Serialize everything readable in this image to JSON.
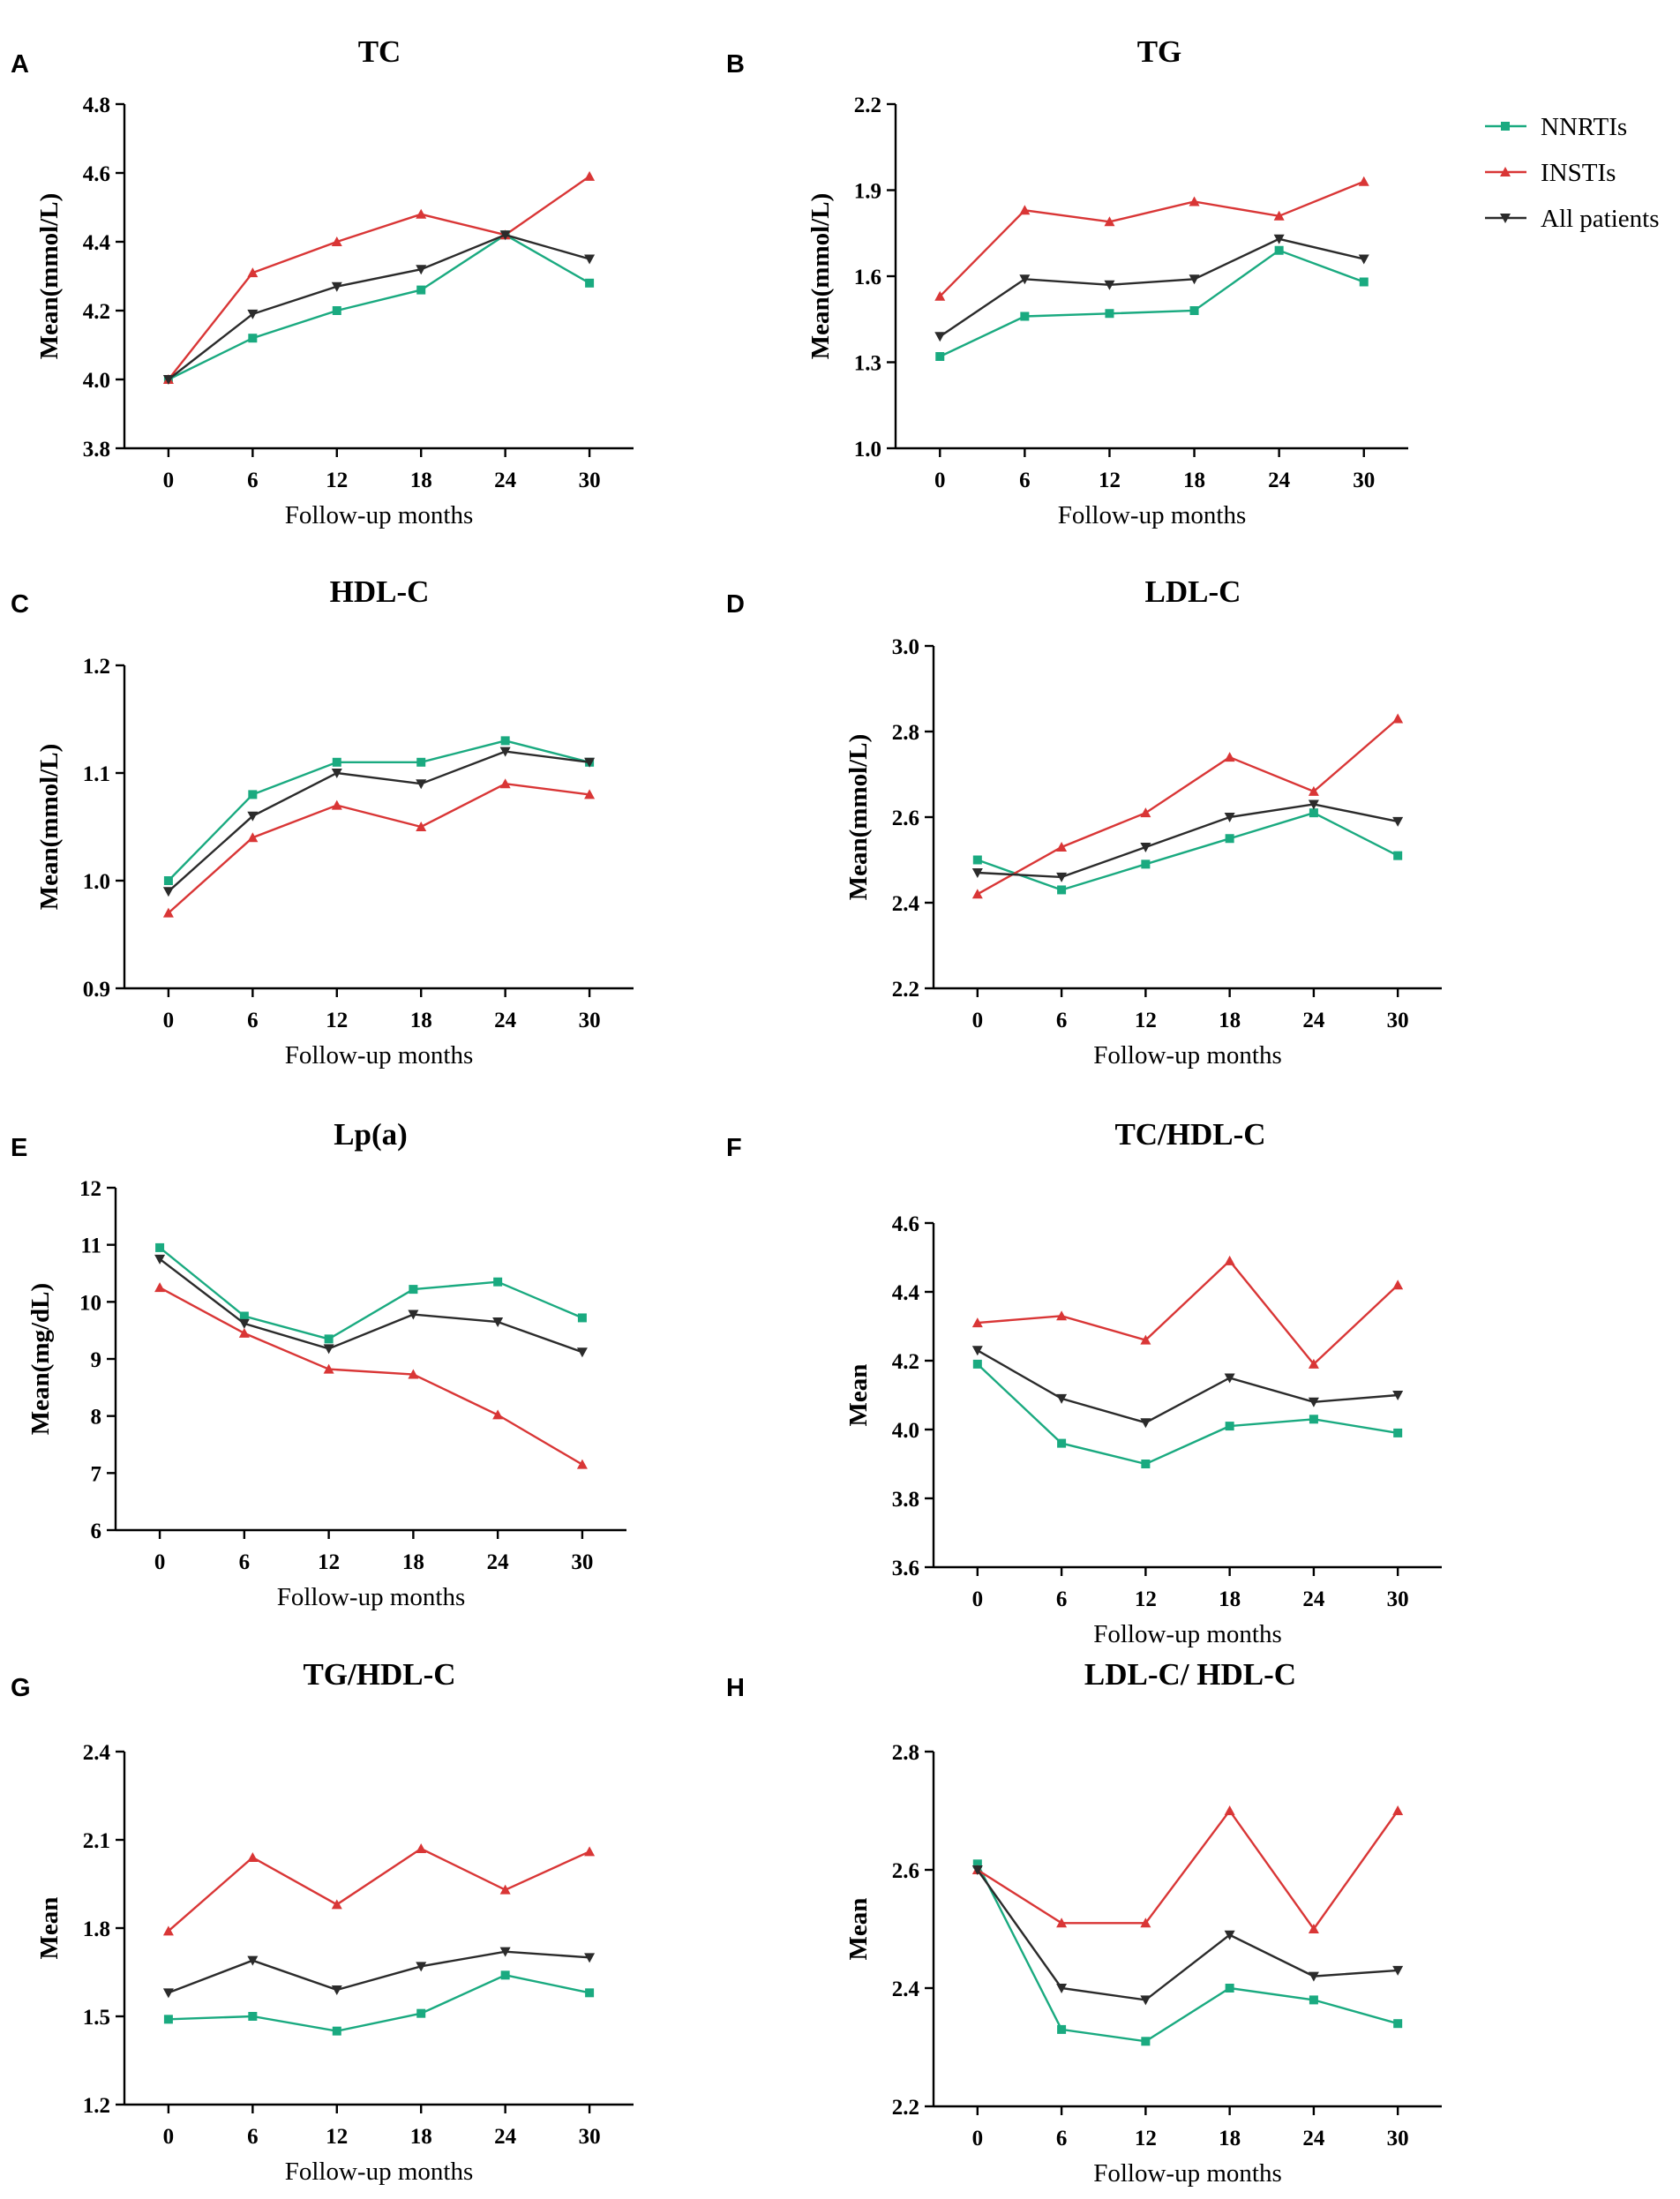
{
  "legend": {
    "items": [
      {
        "name": "NNRTIs",
        "color": "#1aaa80",
        "marker": "square"
      },
      {
        "name": "INSTIs",
        "color": "#d93636",
        "marker": "triangle-up"
      },
      {
        "name": "All patients",
        "color": "#2b2b2b",
        "marker": "triangle-down"
      }
    ]
  },
  "chart_data": [
    {
      "panel": "A",
      "type": "line",
      "title": "TC",
      "xlabel": "Follow-up months",
      "ylabel": "Mean(mmol/L)",
      "x": [
        0,
        6,
        12,
        18,
        24,
        30
      ],
      "ylim": [
        3.8,
        4.8
      ],
      "yticks": [
        "3.8",
        "4.0",
        "4.2",
        "4.4",
        "4.6",
        "4.8"
      ],
      "series": [
        {
          "name": "NNRTIs",
          "values": [
            4.0,
            4.12,
            4.2,
            4.26,
            4.42,
            4.28
          ]
        },
        {
          "name": "INSTIs",
          "values": [
            4.0,
            4.31,
            4.4,
            4.48,
            4.42,
            4.59
          ]
        },
        {
          "name": "All patients",
          "values": [
            4.0,
            4.19,
            4.27,
            4.32,
            4.42,
            4.35
          ]
        }
      ]
    },
    {
      "panel": "B",
      "type": "line",
      "title": "TG",
      "xlabel": "Follow-up months",
      "ylabel": "Mean(mmol/L)",
      "x": [
        0,
        6,
        12,
        18,
        24,
        30
      ],
      "ylim": [
        1.0,
        2.2
      ],
      "yticks": [
        "1.0",
        "1.3",
        "1.6",
        "1.9",
        "2.2"
      ],
      "series": [
        {
          "name": "NNRTIs",
          "values": [
            1.32,
            1.46,
            1.47,
            1.48,
            1.69,
            1.58
          ]
        },
        {
          "name": "INSTIs",
          "values": [
            1.53,
            1.83,
            1.79,
            1.86,
            1.81,
            1.93
          ]
        },
        {
          "name": "All patients",
          "values": [
            1.39,
            1.59,
            1.57,
            1.59,
            1.73,
            1.66
          ]
        }
      ]
    },
    {
      "panel": "C",
      "type": "line",
      "title": "HDL-C",
      "xlabel": "Follow-up months",
      "ylabel": "Mean(mmol/L)",
      "x": [
        0,
        6,
        12,
        18,
        24,
        30
      ],
      "ylim": [
        0.9,
        1.2
      ],
      "yticks": [
        "0.9",
        "1.0",
        "1.1",
        "1.2"
      ],
      "series": [
        {
          "name": "NNRTIs",
          "values": [
            1.0,
            1.08,
            1.11,
            1.11,
            1.13,
            1.11
          ]
        },
        {
          "name": "INSTIs",
          "values": [
            0.97,
            1.04,
            1.07,
            1.05,
            1.09,
            1.08
          ]
        },
        {
          "name": "All patients",
          "values": [
            0.99,
            1.06,
            1.1,
            1.09,
            1.12,
            1.11
          ]
        }
      ]
    },
    {
      "panel": "D",
      "type": "line",
      "title": "LDL-C",
      "xlabel": "Follow-up months",
      "ylabel": "Mean(mmol/L)",
      "x": [
        0,
        6,
        12,
        18,
        24,
        30
      ],
      "ylim": [
        2.2,
        3.0
      ],
      "yticks": [
        "2.2",
        "2.4",
        "2.6",
        "2.8",
        "3.0"
      ],
      "series": [
        {
          "name": "NNRTIs",
          "values": [
            2.5,
            2.43,
            2.49,
            2.55,
            2.61,
            2.51
          ]
        },
        {
          "name": "INSTIs",
          "values": [
            2.42,
            2.53,
            2.61,
            2.74,
            2.66,
            2.83
          ]
        },
        {
          "name": "All patients",
          "values": [
            2.47,
            2.46,
            2.53,
            2.6,
            2.63,
            2.59
          ]
        }
      ]
    },
    {
      "panel": "E",
      "type": "line",
      "title": "Lp(a)",
      "xlabel": "Follow-up months",
      "ylabel": "Mean(mg/dL)",
      "x": [
        0,
        6,
        12,
        18,
        24,
        30
      ],
      "ylim": [
        6,
        12
      ],
      "yticks": [
        "6",
        "7",
        "8",
        "9",
        "10",
        "11",
        "12"
      ],
      "series": [
        {
          "name": "NNRTIs",
          "values": [
            10.95,
            9.75,
            9.35,
            10.22,
            10.35,
            9.72
          ]
        },
        {
          "name": "INSTIs",
          "values": [
            10.25,
            9.45,
            8.82,
            8.73,
            8.02,
            7.15
          ]
        },
        {
          "name": "All patients",
          "values": [
            10.75,
            9.62,
            9.18,
            9.78,
            9.65,
            9.12
          ]
        }
      ]
    },
    {
      "panel": "F",
      "type": "line",
      "title": "TC/HDL-C",
      "xlabel": "Follow-up months",
      "ylabel": "Mean",
      "x": [
        0,
        6,
        12,
        18,
        24,
        30
      ],
      "ylim": [
        3.6,
        4.6
      ],
      "yticks": [
        "3.6",
        "3.8",
        "4.0",
        "4.2",
        "4.4",
        "4.6"
      ],
      "series": [
        {
          "name": "NNRTIs",
          "values": [
            4.19,
            3.96,
            3.9,
            4.01,
            4.03,
            3.99
          ]
        },
        {
          "name": "INSTIs",
          "values": [
            4.31,
            4.33,
            4.26,
            4.49,
            4.19,
            4.42
          ]
        },
        {
          "name": "All patients",
          "values": [
            4.23,
            4.09,
            4.02,
            4.15,
            4.08,
            4.1
          ]
        }
      ]
    },
    {
      "panel": "G",
      "type": "line",
      "title": "TG/HDL-C",
      "xlabel": "Follow-up months",
      "ylabel": "Mean",
      "x": [
        0,
        6,
        12,
        18,
        24,
        30
      ],
      "ylim": [
        1.2,
        2.4
      ],
      "yticks": [
        "1.2",
        "1.5",
        "1.8",
        "2.1",
        "2.4"
      ],
      "series": [
        {
          "name": "NNRTIs",
          "values": [
            1.49,
            1.5,
            1.45,
            1.51,
            1.64,
            1.58
          ]
        },
        {
          "name": "INSTIs",
          "values": [
            1.79,
            2.04,
            1.88,
            2.07,
            1.93,
            2.06
          ]
        },
        {
          "name": "All patients",
          "values": [
            1.58,
            1.69,
            1.59,
            1.67,
            1.72,
            1.7
          ]
        }
      ]
    },
    {
      "panel": "H",
      "type": "line",
      "title": "LDL-C/ HDL-C",
      "xlabel": "Follow-up months",
      "ylabel": "Mean",
      "x": [
        0,
        6,
        12,
        18,
        24,
        30
      ],
      "ylim": [
        2.2,
        2.8
      ],
      "yticks": [
        "2.2",
        "2.4",
        "2.6",
        "2.8"
      ],
      "series": [
        {
          "name": "NNRTIs",
          "values": [
            2.61,
            2.33,
            2.31,
            2.4,
            2.38,
            2.34
          ]
        },
        {
          "name": "INSTIs",
          "values": [
            2.6,
            2.51,
            2.51,
            2.7,
            2.5,
            2.7
          ]
        },
        {
          "name": "All patients",
          "values": [
            2.6,
            2.4,
            2.38,
            2.49,
            2.42,
            2.43
          ]
        }
      ]
    }
  ]
}
